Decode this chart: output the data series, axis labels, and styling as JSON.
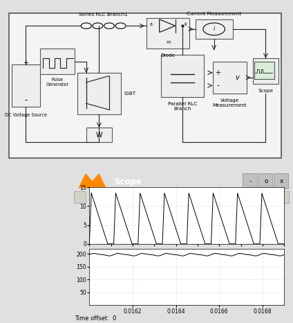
{
  "fig_width": 4.24,
  "fig_height": 4.66,
  "dpi": 100,
  "bg_color": "#e0e0e0",
  "simulink_bg": "#f2f2f2",
  "scope_title_color": "#4472c4",
  "scope_title": "Scope",
  "scope_bg": "#d4d0c8",
  "plot_bg": "#ffffff",
  "plot1_ylim": [
    0,
    15
  ],
  "plot1_yticks": [
    0,
    5,
    10,
    15
  ],
  "plot2_ylim": [
    0,
    220
  ],
  "plot2_yticks": [
    50,
    100,
    150,
    200
  ],
  "xlim": [
    0.016,
    0.0169
  ],
  "xticks": [
    0.0162,
    0.0164,
    0.0166,
    0.0168
  ],
  "time_offset_label": "Time offset:  0",
  "grid_color": "#aaaaaa",
  "signal1_color": "#000000",
  "signal2_color": "#000000",
  "n_periods": 8,
  "peak_current": 13.5,
  "voltage_mean": 197,
  "voltage_amp": 4,
  "component_labels": {
    "series_rlc": "Series RLC Branch1",
    "diode": "Diode",
    "current_meas": "Current Measurement",
    "igbt": "IGBT",
    "parallel_rlc": "Parallel RLC\nBranch",
    "voltage_meas": "Voltage\nMeasurement",
    "scope_block": "Scope",
    "pulse_gen": "Pulse\nGenerator",
    "dc_source": "DC Voltage Source"
  }
}
